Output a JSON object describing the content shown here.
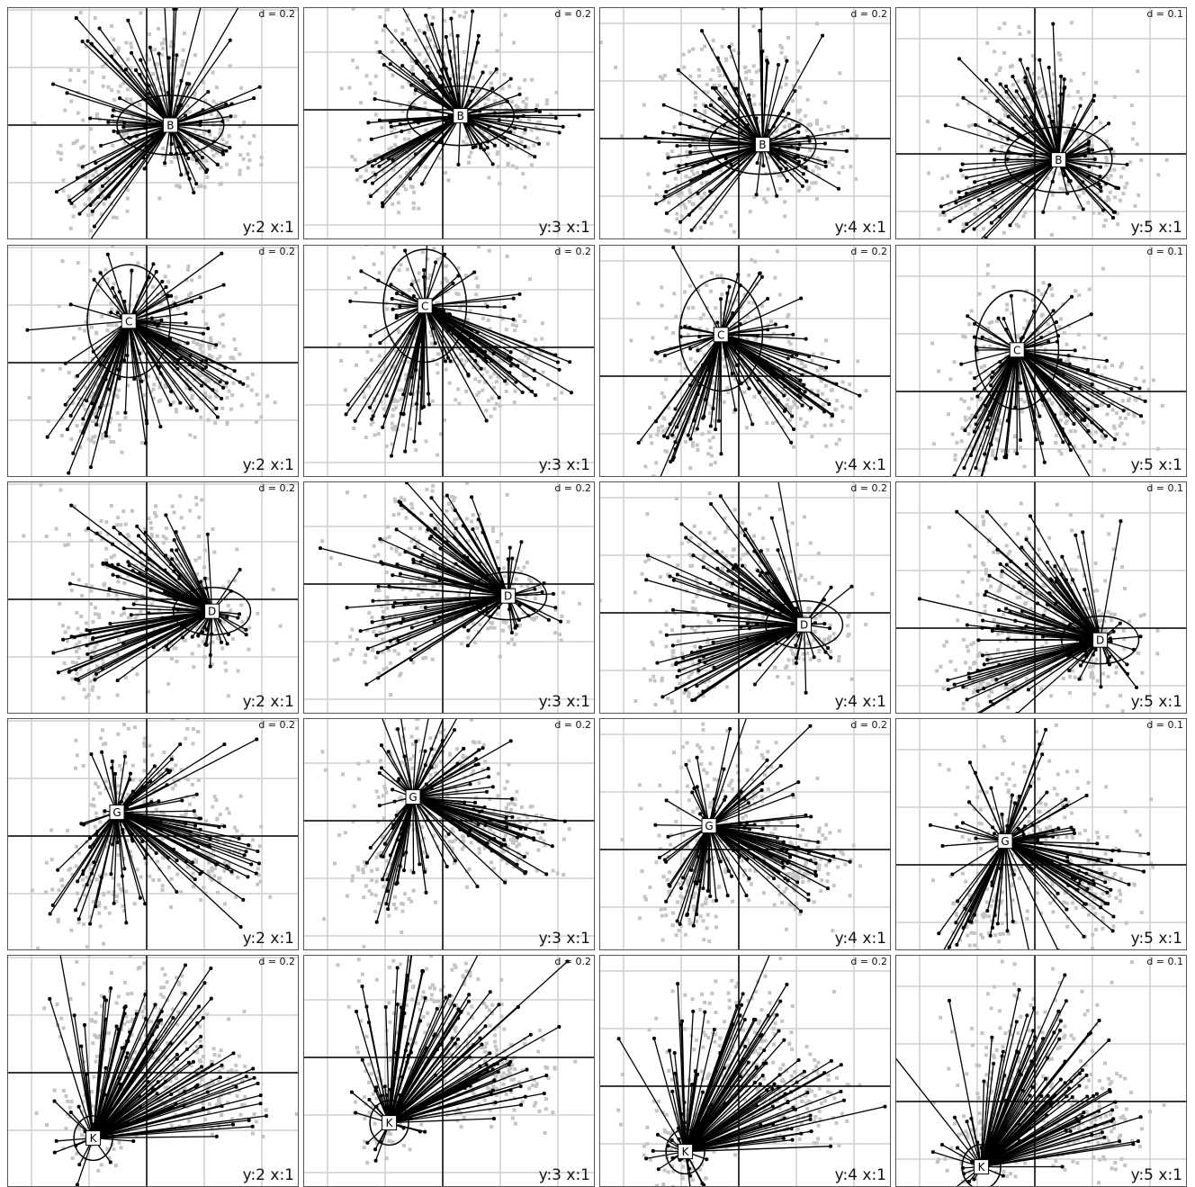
{
  "colors": {
    "background_points": "#c4c4c4",
    "star_lines": "#000000",
    "grid": "#cfcfcf",
    "axis": "#000000",
    "panel_border": "#555555"
  },
  "chart_data": {
    "type": "scatter",
    "layout": "5 rows x 4 columns of panels",
    "grid": true,
    "rows": [
      {
        "group": "B",
        "panels": [
          {
            "axes": "y:2 x:1",
            "d": "d = 0.2",
            "center": [
              0.08,
              0.0
            ],
            "ellipse_rx": 0.36,
            "ellipse_ry": 0.2
          },
          {
            "axes": "y:3 x:1",
            "d": "d = 0.2",
            "center": [
              0.06,
              -0.02
            ],
            "ellipse_rx": 0.36,
            "ellipse_ry": 0.2
          },
          {
            "axes": "y:4 x:1",
            "d": "d = 0.2",
            "center": [
              0.08,
              -0.02
            ],
            "ellipse_rx": 0.36,
            "ellipse_ry": 0.2
          },
          {
            "axes": "y:5 x:1",
            "d": "d = 0.1",
            "center": [
              0.08,
              -0.02
            ],
            "ellipse_rx": 0.36,
            "ellipse_ry": 0.22
          }
        ]
      },
      {
        "group": "C",
        "panels": [
          {
            "axes": "y:2 x:1",
            "d": "d = 0.2",
            "center": [
              -0.06,
              0.14
            ],
            "ellipse_rx": 0.28,
            "ellipse_ry": 0.38
          },
          {
            "axes": "y:3 x:1",
            "d": "d = 0.2",
            "center": [
              -0.06,
              0.14
            ],
            "ellipse_rx": 0.28,
            "ellipse_ry": 0.38
          },
          {
            "axes": "y:4 x:1",
            "d": "d = 0.2",
            "center": [
              -0.06,
              0.14
            ],
            "ellipse_rx": 0.28,
            "ellipse_ry": 0.38
          },
          {
            "axes": "y:5 x:1",
            "d": "d = 0.1",
            "center": [
              -0.06,
              0.14
            ],
            "ellipse_rx": 0.28,
            "ellipse_ry": 0.4
          }
        ]
      },
      {
        "group": "D",
        "panels": [
          {
            "axes": "y:2 x:1",
            "d": "d = 0.2",
            "center": [
              0.22,
              -0.04
            ],
            "ellipse_rx": 0.26,
            "ellipse_ry": 0.16
          },
          {
            "axes": "y:3 x:1",
            "d": "d = 0.2",
            "center": [
              0.22,
              -0.04
            ],
            "ellipse_rx": 0.26,
            "ellipse_ry": 0.16
          },
          {
            "axes": "y:4 x:1",
            "d": "d = 0.2",
            "center": [
              0.22,
              -0.04
            ],
            "ellipse_rx": 0.26,
            "ellipse_ry": 0.16
          },
          {
            "axes": "y:5 x:1",
            "d": "d = 0.1",
            "center": [
              0.22,
              -0.04
            ],
            "ellipse_rx": 0.26,
            "ellipse_ry": 0.16
          }
        ]
      },
      {
        "group": "G",
        "panels": [
          {
            "axes": "y:2 x:1",
            "d": "d = 0.2",
            "center": [
              -0.1,
              0.08
            ],
            "ellipse_rx": 0.0,
            "ellipse_ry": 0.0
          },
          {
            "axes": "y:3 x:1",
            "d": "d = 0.2",
            "center": [
              -0.1,
              0.08
            ],
            "ellipse_rx": 0.0,
            "ellipse_ry": 0.0
          },
          {
            "axes": "y:4 x:1",
            "d": "d = 0.2",
            "center": [
              -0.1,
              0.08
            ],
            "ellipse_rx": 0.0,
            "ellipse_ry": 0.0
          },
          {
            "axes": "y:5 x:1",
            "d": "d = 0.1",
            "center": [
              -0.1,
              0.08
            ],
            "ellipse_rx": 0.0,
            "ellipse_ry": 0.0
          }
        ]
      },
      {
        "group": "K",
        "panels": [
          {
            "axes": "y:2 x:1",
            "d": "d = 0.2",
            "center": [
              -0.18,
              -0.22
            ],
            "ellipse_rx": 0.13,
            "ellipse_ry": 0.15
          },
          {
            "axes": "y:3 x:1",
            "d": "d = 0.2",
            "center": [
              -0.18,
              -0.22
            ],
            "ellipse_rx": 0.13,
            "ellipse_ry": 0.15
          },
          {
            "axes": "y:4 x:1",
            "d": "d = 0.2",
            "center": [
              -0.18,
              -0.22
            ],
            "ellipse_rx": 0.13,
            "ellipse_ry": 0.15
          },
          {
            "axes": "y:5 x:1",
            "d": "d = 0.1",
            "center": [
              -0.18,
              -0.22
            ],
            "ellipse_rx": 0.13,
            "ellipse_ry": 0.15
          }
        ]
      }
    ]
  }
}
